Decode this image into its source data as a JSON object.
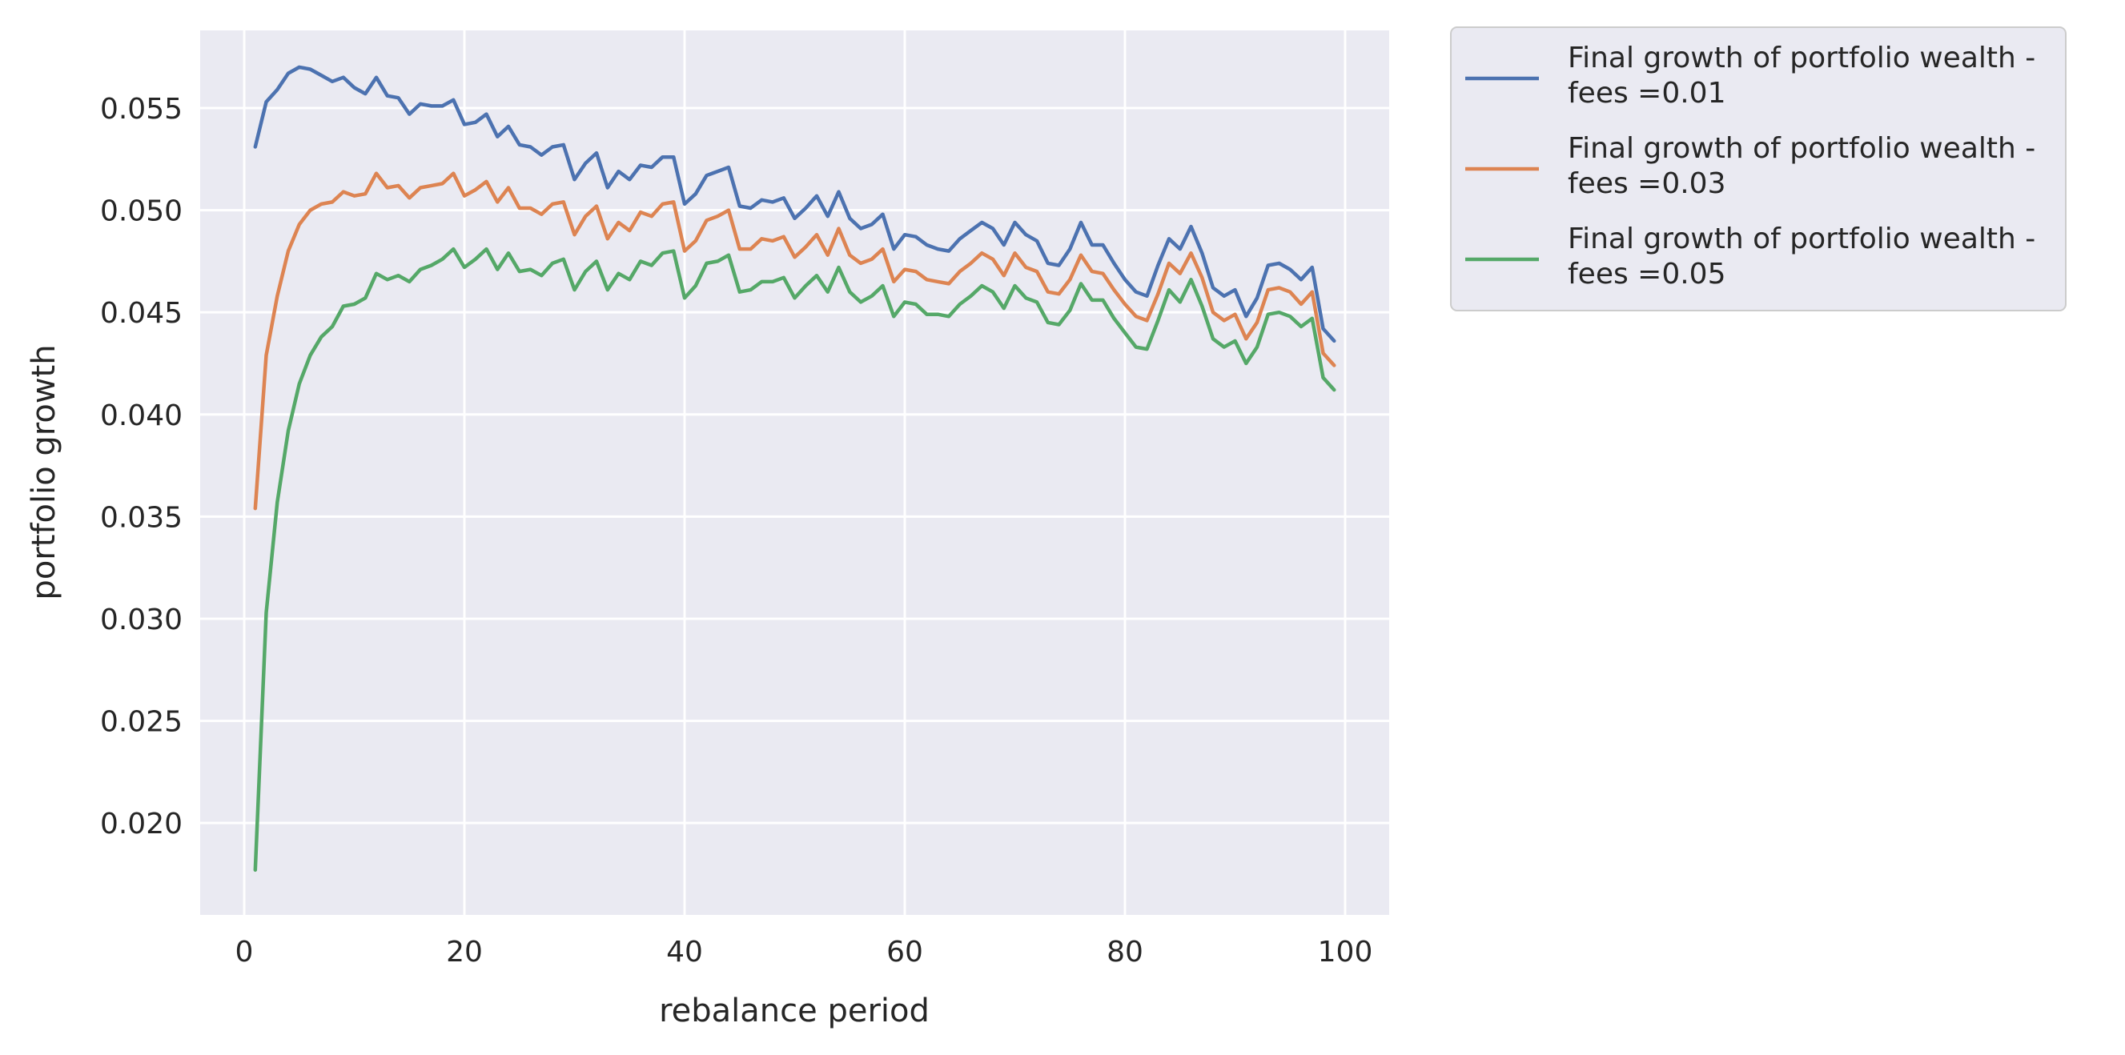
{
  "chart_data": {
    "type": "line",
    "title": "",
    "xlabel": "rebalance period",
    "ylabel": "portfolio growth",
    "xlim": [
      -4,
      104
    ],
    "ylim": [
      0.0155,
      0.0588
    ],
    "xticks": [
      0,
      20,
      40,
      60,
      80,
      100
    ],
    "xtick_labels": [
      "0",
      "20",
      "40",
      "60",
      "80",
      "100"
    ],
    "yticks": [
      0.02,
      0.025,
      0.03,
      0.035,
      0.04,
      0.045,
      0.05,
      0.055
    ],
    "ytick_labels": [
      "0.020",
      "0.025",
      "0.030",
      "0.035",
      "0.040",
      "0.045",
      "0.050",
      "0.055"
    ],
    "grid": true,
    "legend": "outside-top-right",
    "x": [
      1,
      2,
      3,
      4,
      5,
      6,
      7,
      8,
      9,
      10,
      11,
      12,
      13,
      14,
      15,
      16,
      17,
      18,
      19,
      20,
      21,
      22,
      23,
      24,
      25,
      26,
      27,
      28,
      29,
      30,
      31,
      32,
      33,
      34,
      35,
      36,
      37,
      38,
      39,
      40,
      41,
      42,
      43,
      44,
      45,
      46,
      47,
      48,
      49,
      50,
      51,
      52,
      53,
      54,
      55,
      56,
      57,
      58,
      59,
      60,
      61,
      62,
      63,
      64,
      65,
      66,
      67,
      68,
      69,
      70,
      71,
      72,
      73,
      74,
      75,
      76,
      77,
      78,
      79,
      80,
      81,
      82,
      83,
      84,
      85,
      86,
      87,
      88,
      89,
      90,
      91,
      92,
      93,
      94,
      95,
      96,
      97,
      98,
      99
    ],
    "series": [
      {
        "name": "Final growth of portfolio wealth -\n fees =0.01",
        "name_lines": [
          "Final growth of portfolio wealth -",
          " fees =0.01"
        ],
        "color": "#4c72b0",
        "values": [
          0.0531,
          0.0553,
          0.0559,
          0.0567,
          0.057,
          0.0569,
          0.0566,
          0.0563,
          0.0565,
          0.056,
          0.0557,
          0.0565,
          0.0556,
          0.0555,
          0.0547,
          0.0552,
          0.0551,
          0.0551,
          0.0554,
          0.0542,
          0.0543,
          0.0547,
          0.0536,
          0.0541,
          0.0532,
          0.0531,
          0.0527,
          0.0531,
          0.0532,
          0.0515,
          0.0523,
          0.0528,
          0.0511,
          0.0519,
          0.0515,
          0.0522,
          0.0521,
          0.0526,
          0.0526,
          0.0503,
          0.0508,
          0.0517,
          0.0519,
          0.0521,
          0.0502,
          0.0501,
          0.0505,
          0.0504,
          0.0506,
          0.0496,
          0.0501,
          0.0507,
          0.0497,
          0.0509,
          0.0496,
          0.0491,
          0.0493,
          0.0498,
          0.0481,
          0.0488,
          0.0487,
          0.0483,
          0.0481,
          0.048,
          0.0486,
          0.049,
          0.0494,
          0.0491,
          0.0483,
          0.0494,
          0.0488,
          0.0485,
          0.0474,
          0.0473,
          0.0481,
          0.0494,
          0.0483,
          0.0483,
          0.0474,
          0.0466,
          0.046,
          0.0458,
          0.0473,
          0.0486,
          0.0481,
          0.0492,
          0.0479,
          0.0462,
          0.0458,
          0.0461,
          0.0448,
          0.0457,
          0.0473,
          0.0474,
          0.0471,
          0.0466,
          0.0472,
          0.0442,
          0.0436
        ]
      },
      {
        "name": "Final growth of portfolio wealth -\n fees =0.03",
        "name_lines": [
          "Final growth of portfolio wealth -",
          " fees =0.03"
        ],
        "color": "#dd8452",
        "values": [
          0.0354,
          0.0429,
          0.0458,
          0.048,
          0.0493,
          0.05,
          0.0503,
          0.0504,
          0.0509,
          0.0507,
          0.0508,
          0.0518,
          0.0511,
          0.0512,
          0.0506,
          0.0511,
          0.0512,
          0.0513,
          0.0518,
          0.0507,
          0.051,
          0.0514,
          0.0504,
          0.0511,
          0.0501,
          0.0501,
          0.0498,
          0.0503,
          0.0504,
          0.0488,
          0.0497,
          0.0502,
          0.0486,
          0.0494,
          0.049,
          0.0499,
          0.0497,
          0.0503,
          0.0504,
          0.048,
          0.0485,
          0.0495,
          0.0497,
          0.05,
          0.0481,
          0.0481,
          0.0486,
          0.0485,
          0.0487,
          0.0477,
          0.0482,
          0.0488,
          0.0478,
          0.0491,
          0.0478,
          0.0474,
          0.0476,
          0.0481,
          0.0465,
          0.0471,
          0.047,
          0.0466,
          0.0465,
          0.0464,
          0.047,
          0.0474,
          0.0479,
          0.0476,
          0.0468,
          0.0479,
          0.0472,
          0.047,
          0.046,
          0.0459,
          0.0466,
          0.0478,
          0.047,
          0.0469,
          0.0461,
          0.0454,
          0.0448,
          0.0446,
          0.0459,
          0.0474,
          0.0469,
          0.0479,
          0.0467,
          0.045,
          0.0446,
          0.0449,
          0.0437,
          0.0445,
          0.0461,
          0.0462,
          0.046,
          0.0454,
          0.046,
          0.043,
          0.0424
        ]
      },
      {
        "name": "Final growth of portfolio wealth -\n fees =0.05",
        "name_lines": [
          "Final growth of portfolio wealth -",
          " fees =0.05"
        ],
        "color": "#55a868",
        "values": [
          0.0177,
          0.0303,
          0.0357,
          0.0392,
          0.0415,
          0.0429,
          0.0438,
          0.0443,
          0.0453,
          0.0454,
          0.0457,
          0.0469,
          0.0466,
          0.0468,
          0.0465,
          0.0471,
          0.0473,
          0.0476,
          0.0481,
          0.0472,
          0.0476,
          0.0481,
          0.0471,
          0.0479,
          0.047,
          0.0471,
          0.0468,
          0.0474,
          0.0476,
          0.0461,
          0.047,
          0.0475,
          0.0461,
          0.0469,
          0.0466,
          0.0475,
          0.0473,
          0.0479,
          0.048,
          0.0457,
          0.0463,
          0.0474,
          0.0475,
          0.0478,
          0.046,
          0.0461,
          0.0465,
          0.0465,
          0.0467,
          0.0457,
          0.0463,
          0.0468,
          0.046,
          0.0472,
          0.046,
          0.0455,
          0.0458,
          0.0463,
          0.0448,
          0.0455,
          0.0454,
          0.0449,
          0.0449,
          0.0448,
          0.0454,
          0.0458,
          0.0463,
          0.046,
          0.0452,
          0.0463,
          0.0457,
          0.0455,
          0.0445,
          0.0444,
          0.0451,
          0.0464,
          0.0456,
          0.0456,
          0.0447,
          0.044,
          0.0433,
          0.0432,
          0.0446,
          0.0461,
          0.0455,
          0.0466,
          0.0453,
          0.0437,
          0.0433,
          0.0436,
          0.0425,
          0.0433,
          0.0449,
          0.045,
          0.0448,
          0.0443,
          0.0447,
          0.0418,
          0.0412
        ]
      }
    ]
  }
}
